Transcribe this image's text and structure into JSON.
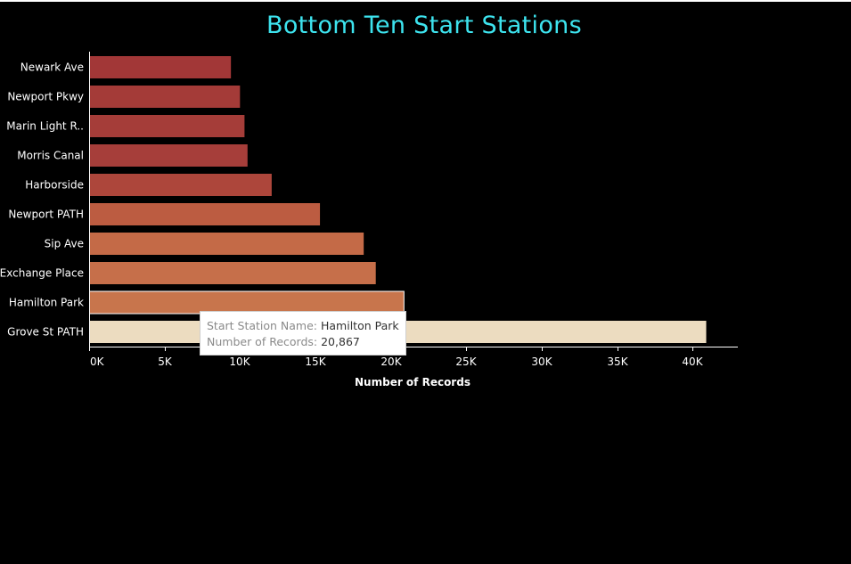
{
  "chart_data": {
    "type": "bar",
    "orientation": "horizontal",
    "title": "Bottom Ten Start Stations",
    "xlabel": "Number of Records",
    "ylabel": "",
    "xlim": [
      0,
      43000
    ],
    "x_ticks": [
      0,
      5000,
      10000,
      15000,
      20000,
      25000,
      30000,
      35000,
      40000
    ],
    "x_tick_labels": [
      "0K",
      "5K",
      "10K",
      "15K",
      "20K",
      "25K",
      "30K",
      "35K",
      "40K"
    ],
    "categories": [
      "Newark Ave",
      "Newport Pkwy",
      "Marin Light R..",
      "Morris Canal",
      "Harborside",
      "Newport PATH",
      "Sip Ave",
      "Exchange Place",
      "Hamilton Park",
      "Grove St PATH"
    ],
    "values": [
      9400,
      10000,
      10300,
      10500,
      12100,
      15300,
      18200,
      19000,
      20867,
      40900
    ],
    "bar_colors": [
      "#a23737",
      "#a43b38",
      "#a53d39",
      "#a63e3a",
      "#ad463b",
      "#bc5c41",
      "#c46a47",
      "#c66f4a",
      "#c8754c",
      "#ecdcc0"
    ],
    "highlighted_category": "Hamilton Park",
    "grid": false,
    "legend": "none"
  },
  "colors": {
    "title": "#3de3ee",
    "background": "#000000",
    "axis": "#ffffff",
    "label": "#ffffff"
  },
  "tooltip": {
    "name_label": "Start Station Name:",
    "name_value": "Hamilton Park",
    "records_label": "Number of Records:",
    "records_value": "20,867"
  }
}
